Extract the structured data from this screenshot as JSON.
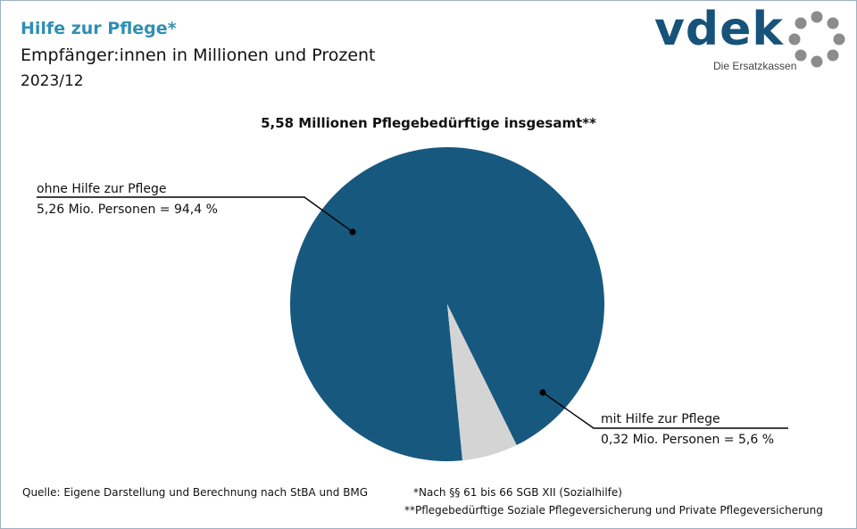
{
  "header": {
    "title": "Hilfe zur Pflege*",
    "subtitle": "Empfänger:innen in Millionen und Prozent",
    "period": "2023/12"
  },
  "logo": {
    "wordmark": "vdek",
    "tagline": "Die Ersatzkassen",
    "icon": "vdek-ring-logo-icon",
    "color": "#17527a"
  },
  "chart_data": {
    "type": "pie",
    "title": "5,58 Millionen Pflegebedürftige insgesamt**",
    "total": 5.58,
    "unit": "Mio. Personen",
    "slices": [
      {
        "label": "ohne Hilfe zur Pflege",
        "value": 5.26,
        "percent": 94.4,
        "value_text": "5,26 Mio. Personen = 94,4 %",
        "color": "#17587f"
      },
      {
        "label": "mit Hilfe zur Pflege",
        "value": 0.32,
        "percent": 5.6,
        "value_text": "0,32 Mio. Personen = 5,6 %",
        "color": "#d4d4d4"
      }
    ],
    "legend": "none"
  },
  "footer": {
    "source": "Quelle: Eigene Darstellung und Berechnung nach StBA und BMG",
    "note1": "*Nach §§ 61 bis 66 SGB XII (Sozialhilfe)",
    "note2": "**Pflegebedürftige Soziale Pflegeversicherung und Private Pflegeversicherung"
  },
  "colors": {
    "title": "#2f8fb3",
    "border": "#9cb0c4",
    "logo_ring": "#8c8c8c"
  }
}
